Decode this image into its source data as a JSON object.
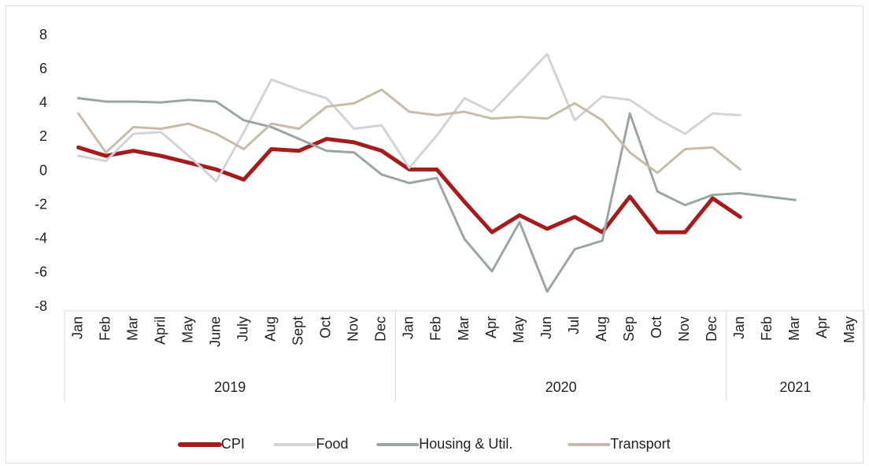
{
  "chart_data": {
    "type": "line",
    "groups": [
      {
        "name": "2019",
        "categories": [
          "Jan",
          "Feb",
          "Mar",
          "April",
          "May",
          "June",
          "July",
          "Aug",
          "Sept",
          "Oct",
          "Nov",
          "Dec"
        ]
      },
      {
        "name": "2020",
        "categories": [
          "Jan",
          "Feb",
          "Mar",
          "Apr",
          "May",
          "Jun",
          "Jul",
          "Aug",
          "Sep",
          "Oct",
          "Nov",
          "Dec"
        ]
      },
      {
        "name": "2021",
        "categories": [
          "Jan",
          "Feb",
          "Mar",
          "Apr",
          "May"
        ]
      }
    ],
    "series": [
      {
        "name": "CPI",
        "color": "#a51c1c",
        "width": 5,
        "values": [
          1.4,
          0.9,
          1.2,
          0.9,
          0.5,
          0.1,
          -0.5,
          1.3,
          1.2,
          1.9,
          1.7,
          1.2,
          0.1,
          0.1,
          -1.8,
          -3.6,
          -2.6,
          -3.4,
          -2.7,
          -3.6,
          -1.5,
          -3.6,
          -3.6,
          -1.6,
          -2.7,
          null,
          null,
          null,
          null
        ]
      },
      {
        "name": "Food",
        "color": "#d2d3da",
        "width": 3,
        "values": [
          0.9,
          0.6,
          2.2,
          2.3,
          0.9,
          -0.6,
          2.3,
          5.4,
          4.8,
          4.3,
          2.5,
          2.7,
          0.2,
          2.1,
          4.3,
          3.5,
          5.2,
          6.9,
          3.0,
          4.4,
          4.2,
          3.1,
          2.2,
          3.4,
          3.3,
          null,
          null,
          null,
          null
        ]
      },
      {
        "name": "Housing & Util.",
        "color": "#9aa6a2",
        "width": 3,
        "values": [
          4.3,
          4.1,
          4.1,
          4.05,
          4.2,
          4.1,
          3.0,
          2.6,
          1.9,
          1.2,
          1.1,
          -0.2,
          -0.7,
          -0.4,
          -4.0,
          -5.9,
          -3.0,
          -7.1,
          -4.6,
          -4.1,
          3.4,
          -1.2,
          -2.0,
          -1.4,
          -1.3,
          -1.5,
          -1.7,
          null,
          null
        ]
      },
      {
        "name": "Transport",
        "color": "#c8bca9",
        "width": 3,
        "values": [
          3.4,
          1.1,
          2.6,
          2.5,
          2.8,
          2.2,
          1.3,
          2.8,
          2.5,
          3.8,
          4.0,
          4.8,
          3.5,
          3.3,
          3.5,
          3.1,
          3.2,
          3.1,
          4.0,
          3.0,
          1.1,
          -0.1,
          1.3,
          1.4,
          0.1,
          null,
          null,
          null,
          null
        ]
      }
    ],
    "ylim": [
      -8,
      8
    ],
    "yticks": [
      -8,
      -6,
      -4,
      -2,
      0,
      2,
      4,
      6,
      8
    ],
    "legend": "bottom"
  }
}
